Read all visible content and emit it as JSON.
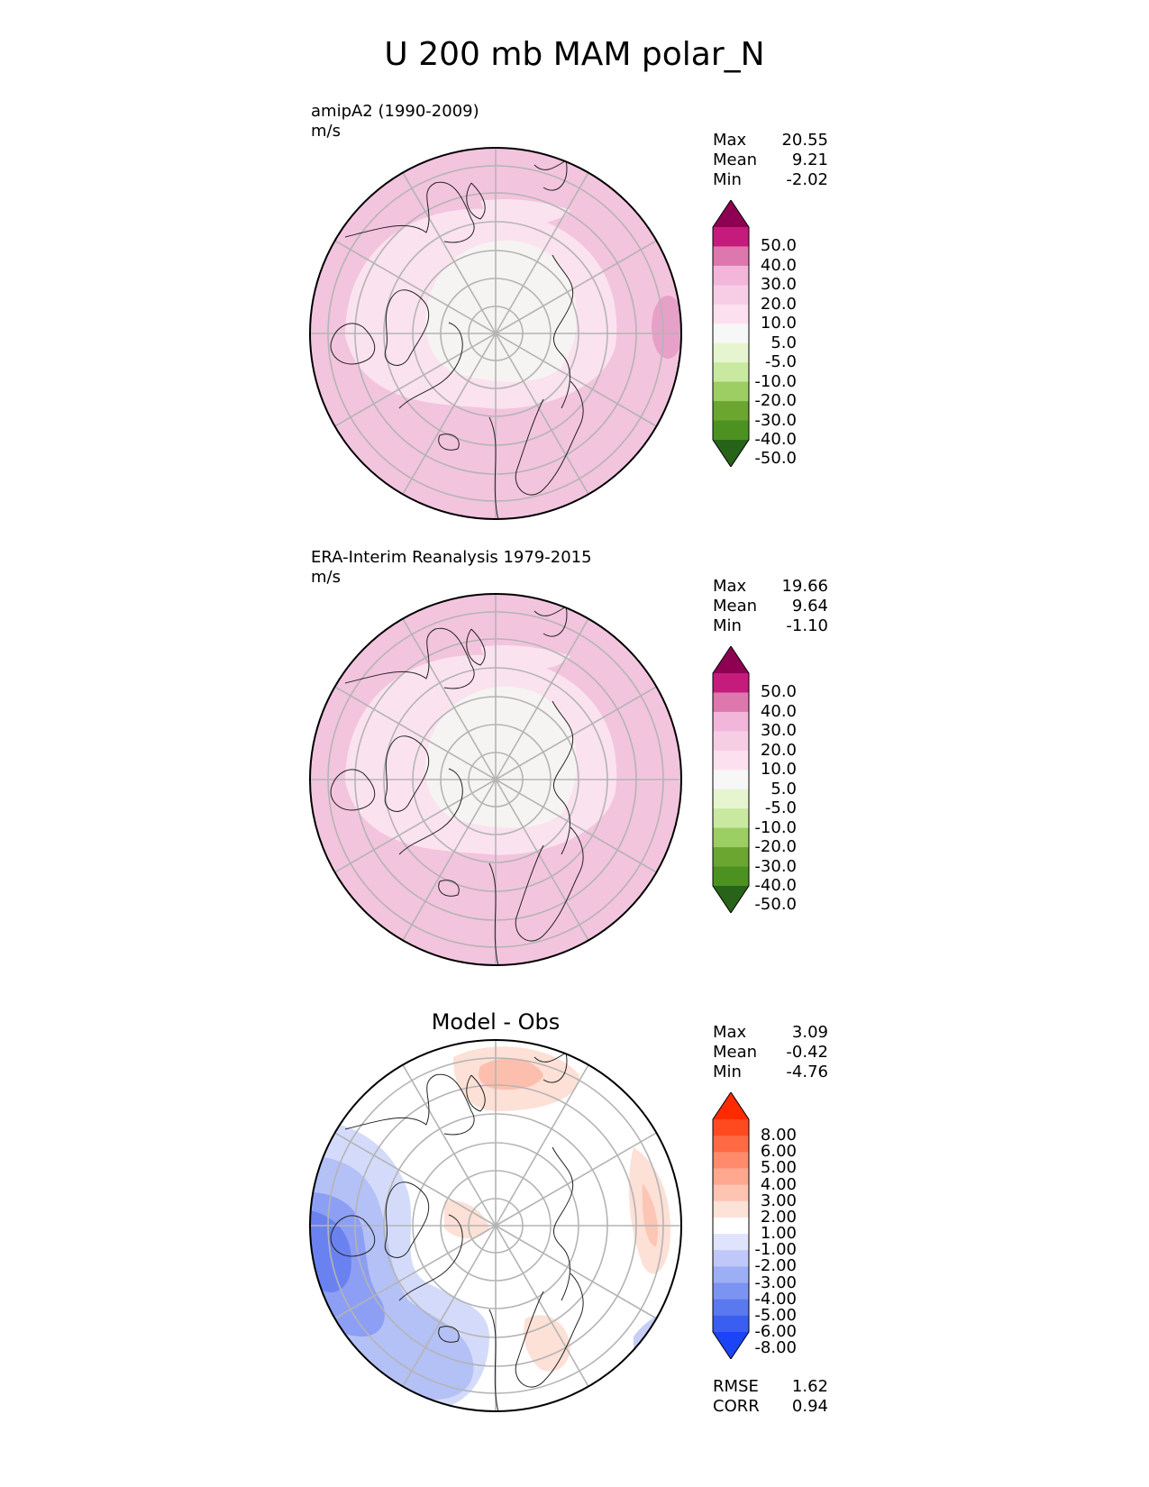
{
  "title": "U 200 mb MAM polar_N",
  "panels": [
    {
      "id": "model",
      "label": "amipA2 (1990-2009)",
      "units": "m/s",
      "panel_title": "",
      "stats": [
        {
          "name": "Max",
          "value": "20.55"
        },
        {
          "name": "Mean",
          "value": "9.21"
        },
        {
          "name": "Min",
          "value": "-2.02"
        }
      ],
      "colorbar": {
        "ticks": [
          "50.0",
          "40.0",
          "30.0",
          "20.0",
          "10.0",
          "5.0",
          "-5.0",
          "-10.0",
          "-20.0",
          "-30.0",
          "-40.0",
          "-50.0"
        ],
        "colors": [
          "#8e0152",
          "#c51b7d",
          "#de77ae",
          "#f1b6da",
          "#f7cde6",
          "#fde0ef",
          "#f7f7f7",
          "#e6f5d0",
          "#c9e9a1",
          "#9cce64",
          "#6ba631",
          "#4d9221",
          "#276419"
        ]
      }
    },
    {
      "id": "obs",
      "label": "ERA-Interim Reanalysis 1979-2015",
      "units": "m/s",
      "panel_title": "",
      "stats": [
        {
          "name": "Max",
          "value": "19.66"
        },
        {
          "name": "Mean",
          "value": "9.64"
        },
        {
          "name": "Min",
          "value": "-1.10"
        }
      ],
      "colorbar": {
        "ticks": [
          "50.0",
          "40.0",
          "30.0",
          "20.0",
          "10.0",
          "5.0",
          "-5.0",
          "-10.0",
          "-20.0",
          "-30.0",
          "-40.0",
          "-50.0"
        ],
        "colors": [
          "#8e0152",
          "#c51b7d",
          "#de77ae",
          "#f1b6da",
          "#f7cde6",
          "#fde0ef",
          "#f7f7f7",
          "#e6f5d0",
          "#c9e9a1",
          "#9cce64",
          "#6ba631",
          "#4d9221",
          "#276419"
        ]
      }
    },
    {
      "id": "diff",
      "label": "",
      "units": "",
      "panel_title": "Model - Obs",
      "stats": [
        {
          "name": "Max",
          "value": "3.09"
        },
        {
          "name": "Mean",
          "value": "-0.42"
        },
        {
          "name": "Min",
          "value": "-4.76"
        }
      ],
      "colorbar": {
        "ticks": [
          "8.00",
          "6.00",
          "5.00",
          "4.00",
          "3.00",
          "2.00",
          "1.00",
          "-1.00",
          "-2.00",
          "-3.00",
          "-4.00",
          "-5.00",
          "-6.00",
          "-8.00"
        ],
        "colors": [
          "#ff2a00",
          "#ff4a1f",
          "#ff6a45",
          "#ff8a6c",
          "#ffa78f",
          "#fec4b2",
          "#fde2d8",
          "#ffffff",
          "#dfe3fb",
          "#bfc8f8",
          "#9caff5",
          "#7b94f2",
          "#5a79ef",
          "#3a5ff0",
          "#1a44f5"
        ]
      },
      "metrics": [
        {
          "name": "RMSE",
          "value": "1.62"
        },
        {
          "name": "CORR",
          "value": "0.94"
        }
      ]
    }
  ]
}
